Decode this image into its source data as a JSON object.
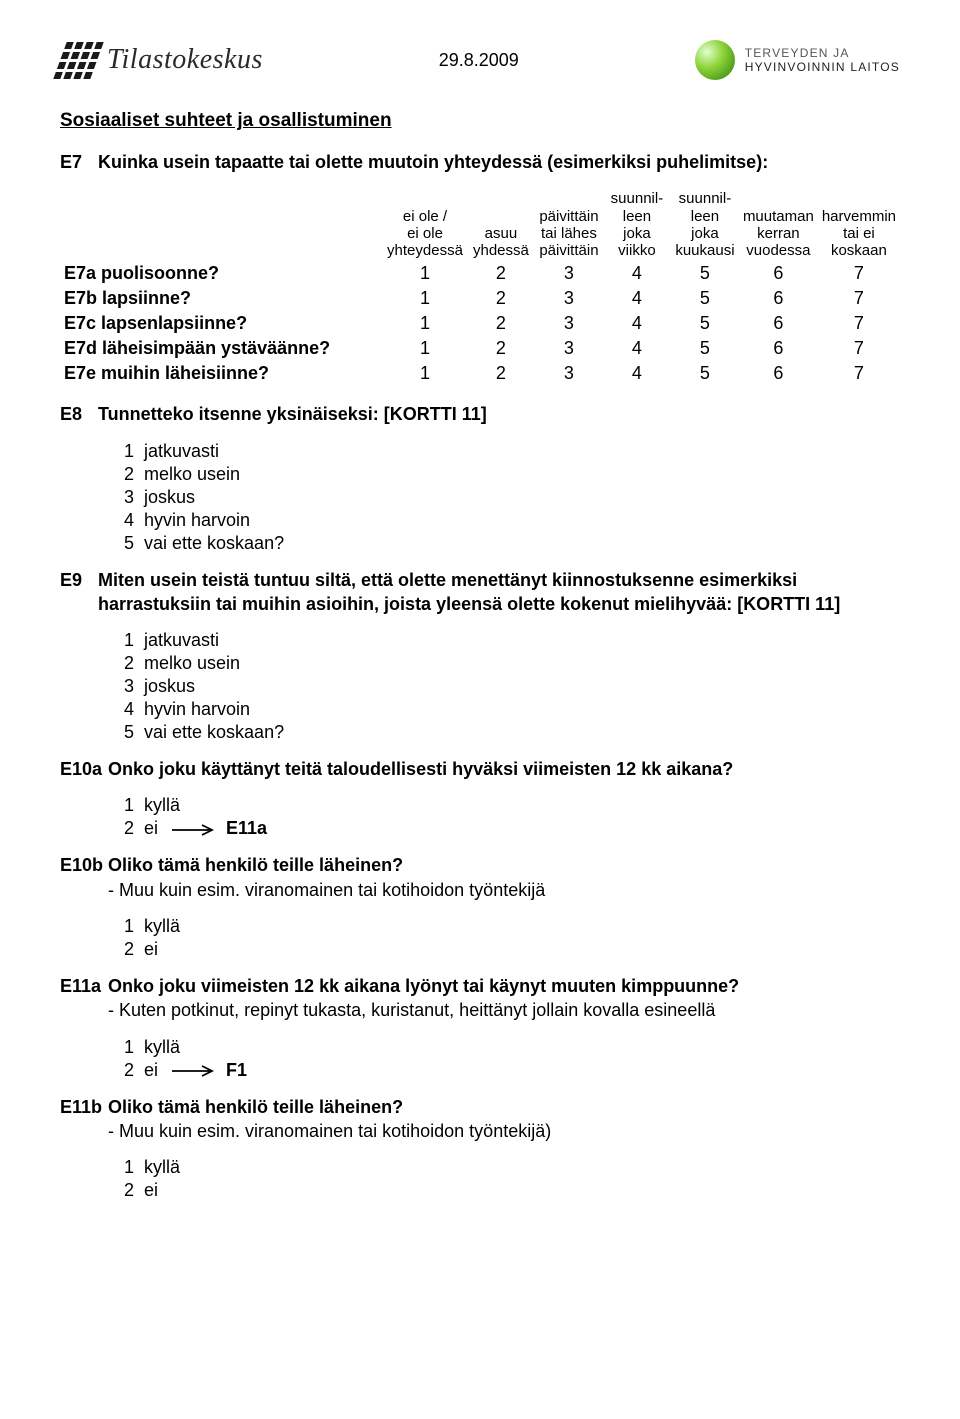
{
  "header": {
    "date": "29.8.2009",
    "logo_left": "Tilastokeskus",
    "logo_right_line1": "TERVEYDEN JA",
    "logo_right_line2": "HYVINVOINNIN LAITOS"
  },
  "section_title": "Sosiaaliset suhteet ja osallistuminen",
  "E7": {
    "id": "E7",
    "text": "Kuinka usein tapaatte tai olette muutoin yhteydessä (esimerkiksi puhelimitse):",
    "headers": [
      [
        "ei ole /",
        "ei ole",
        "yhteydessä"
      ],
      [
        "",
        "asuu",
        "yhdessä"
      ],
      [
        "päivittäin",
        "tai lähes",
        "päivittäin"
      ],
      [
        "suunnil-",
        "leen joka",
        "viikko"
      ],
      [
        "suunnil-",
        "leen joka",
        "kuukausi"
      ],
      [
        "muutaman",
        "kerran",
        "vuodessa"
      ],
      [
        "harvemmin",
        "tai ei",
        "koskaan"
      ]
    ],
    "rows": [
      {
        "id": "E7a",
        "label": "puolisoonne?",
        "vals": [
          1,
          2,
          3,
          4,
          5,
          6,
          7
        ]
      },
      {
        "id": "E7b",
        "label": "lapsiinne?",
        "vals": [
          1,
          2,
          3,
          4,
          5,
          6,
          7
        ]
      },
      {
        "id": "E7c",
        "label": "lapsenlapsiinne?",
        "vals": [
          1,
          2,
          3,
          4,
          5,
          6,
          7
        ]
      },
      {
        "id": "E7d",
        "label": "läheisimpään ystäväänne?",
        "vals": [
          1,
          2,
          3,
          4,
          5,
          6,
          7
        ]
      },
      {
        "id": "E7e",
        "label": "muihin läheisiinne?",
        "vals": [
          1,
          2,
          3,
          4,
          5,
          6,
          7
        ]
      }
    ]
  },
  "E8": {
    "id": "E8",
    "text": "Tunnetteko itsenne yksinäiseksi: [KORTTI 11]",
    "answers": [
      {
        "n": "1",
        "l": "jatkuvasti"
      },
      {
        "n": "2",
        "l": "melko usein"
      },
      {
        "n": "3",
        "l": "joskus"
      },
      {
        "n": "4",
        "l": "hyvin harvoin"
      },
      {
        "n": "5",
        "l": "vai ette koskaan?"
      }
    ]
  },
  "E9": {
    "id": "E9",
    "text": "Miten usein teistä tuntuu siltä, että olette menettänyt kiinnostuksenne esimerkiksi harrastuksiin tai muihin asioihin, joista yleensä olette kokenut mielihyvää: [KORTTI 11]",
    "answers": [
      {
        "n": "1",
        "l": "jatkuvasti"
      },
      {
        "n": "2",
        "l": "melko usein"
      },
      {
        "n": "3",
        "l": "joskus"
      },
      {
        "n": "4",
        "l": "hyvin harvoin"
      },
      {
        "n": "5",
        "l": "vai ette koskaan?"
      }
    ]
  },
  "E10a": {
    "id": "E10a",
    "text": "Onko joku käyttänyt teitä taloudellisesti hyväksi viimeisten 12 kk aikana?",
    "answers": [
      {
        "n": "1",
        "l": "kyllä"
      },
      {
        "n": "2",
        "l": "ei",
        "jump": "E11a"
      }
    ]
  },
  "E10b": {
    "id": "E10b",
    "text": "Oliko tämä henkilö teille läheinen?",
    "note": "- Muu kuin esim. viranomainen tai kotihoidon työntekijä",
    "answers": [
      {
        "n": "1",
        "l": "kyllä"
      },
      {
        "n": "2",
        "l": "ei"
      }
    ]
  },
  "E11a": {
    "id": "E11a",
    "text": "Onko joku viimeisten 12 kk aikana lyönyt tai käynyt muuten kimppuunne?",
    "note": "- Kuten potkinut, repinyt tukasta, kuristanut, heittänyt jollain kovalla esineellä",
    "answers": [
      {
        "n": "1",
        "l": "kyllä"
      },
      {
        "n": "2",
        "l": "ei",
        "jump": "F1"
      }
    ]
  },
  "E11b": {
    "id": "E11b",
    "text": "Oliko tämä henkilö teille läheinen?",
    "note": "- Muu kuin esim. viranomainen tai kotihoidon työntekijä)",
    "answers": [
      {
        "n": "1",
        "l": "kyllä"
      },
      {
        "n": "2",
        "l": "ei"
      }
    ]
  }
}
